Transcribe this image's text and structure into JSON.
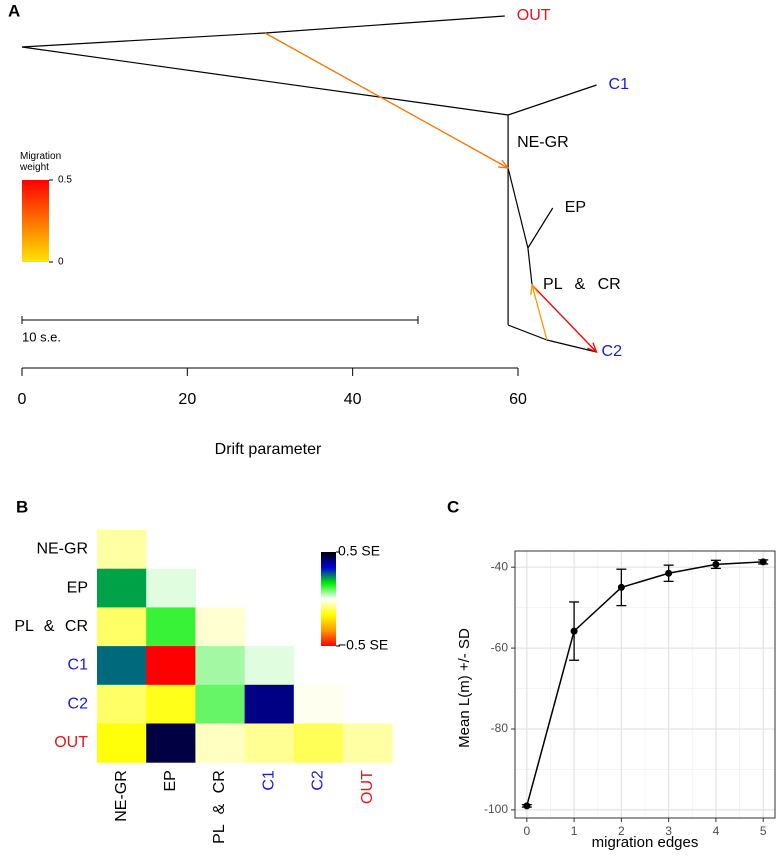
{
  "chart_data": [
    {
      "type": "tree",
      "panel": "A",
      "xlabel": "Drift parameter",
      "xlim": [
        0,
        60
      ],
      "xticks": [
        0,
        20,
        40,
        60
      ],
      "nodes": [
        {
          "x": 0,
          "label": null,
          "color": "#000000"
        },
        {
          "x": 58.4,
          "label": "OUT",
          "color": "#e8141c"
        },
        {
          "x": 58.8,
          "label": null,
          "color": "#000000"
        },
        {
          "x": 69.5,
          "label": "C1",
          "color": "#1a1adc"
        },
        {
          "x": 58.8,
          "label": "NE-GR",
          "color": "#000000"
        },
        {
          "x": 61.2,
          "label": null,
          "color": "#000000"
        },
        {
          "x": 64.2,
          "label": "EP",
          "color": "#000000"
        },
        {
          "x": 61.7,
          "label": "PL & CR",
          "color": "#000000"
        },
        {
          "x": 58.8,
          "label": null,
          "color": "#000000"
        },
        {
          "x": 69.5,
          "label": "C2",
          "color": "#1a1adc"
        },
        {
          "x": 29.4,
          "label": null,
          "color": "#000000"
        },
        {
          "x": 63.5,
          "label": null,
          "color": "#000000"
        }
      ],
      "edges": [
        [
          0,
          10
        ],
        [
          10,
          1
        ],
        [
          0,
          2
        ],
        [
          2,
          3
        ],
        [
          2,
          8
        ],
        [
          4,
          5
        ],
        [
          5,
          6
        ],
        [
          5,
          7
        ],
        [
          8,
          11
        ],
        [
          11,
          9
        ]
      ],
      "migrations": [
        {
          "from": 10,
          "to": 4,
          "weight": 0.25
        },
        {
          "from": 7,
          "to": 9,
          "weight": 0.5
        },
        {
          "from": 11,
          "to": 7,
          "weight": 0.18
        }
      ],
      "migration_legend": {
        "title": "Migration weight",
        "lim": [
          0,
          0.5
        ],
        "ticks": [
          0,
          0.5
        ],
        "colors": [
          "#ffe600",
          "#ff0000"
        ]
      },
      "scale_bar": {
        "label": "10 s.e.",
        "length": 47.9
      }
    },
    {
      "type": "heatmap",
      "panel": "B",
      "categories": [
        "NE-GR",
        "EP",
        "PL & CR",
        "C1",
        "C2",
        "OUT"
      ],
      "label_colors": [
        "#000000",
        "#000000",
        "#000000",
        "#1a1adc",
        "#1a1adc",
        "#e8141c"
      ],
      "z": [
        [
          -0.06
        ],
        [
          0.22,
          0.02
        ],
        [
          -0.1,
          0.13,
          -0.03
        ],
        [
          0.26,
          -0.5,
          0.06,
          0.02
        ],
        [
          -0.1,
          -0.15,
          0.1,
          0.4,
          -0.01
        ],
        [
          -0.16,
          0.45,
          -0.04,
          -0.07,
          -0.11,
          -0.06
        ]
      ],
      "colorbar": {
        "lim": [
          -0.5,
          0.5
        ],
        "ticks": [
          {
            "value": 0.5,
            "label": "0.5 SE"
          },
          {
            "value": -0.5,
            "label": "−0.5 SE"
          }
        ],
        "colors": [
          "#ff0000",
          "#ff9900",
          "#ffff00",
          "#ffffff",
          "#00ee00",
          "#0000dd",
          "#000000"
        ]
      }
    },
    {
      "type": "line",
      "panel": "C",
      "xlabel": "migration edges",
      "ylabel": "Mean L(m) +/- SD",
      "x": [
        0,
        1,
        2,
        3,
        4,
        5
      ],
      "values": [
        -99,
        -55.8,
        -45,
        -41.5,
        -39.3,
        -38.7
      ],
      "errors": [
        0.3,
        7.2,
        4.5,
        2,
        1,
        0.5
      ],
      "xlim": [
        -0.25,
        5.25
      ],
      "ylim": [
        -102,
        -36
      ],
      "xticks": [
        0,
        1,
        2,
        3,
        4,
        5
      ],
      "yticks": [
        -40,
        -60,
        -80,
        -100
      ],
      "grid": true,
      "color": "#000000"
    }
  ]
}
